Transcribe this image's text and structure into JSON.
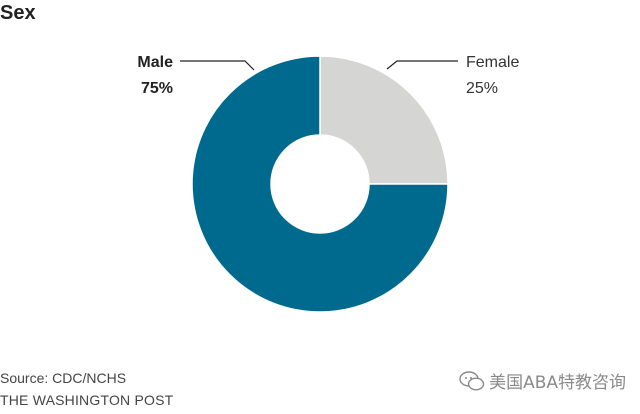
{
  "chart_data": {
    "type": "pie",
    "title": "Sex",
    "donut": true,
    "slices": [
      {
        "label": "Male",
        "value_label": "75%",
        "value": 75,
        "color": "#006a8e"
      },
      {
        "label": "Female",
        "value_label": "25%",
        "value": 25,
        "color": "#d5d5d3"
      }
    ]
  },
  "footer": {
    "source": "Source: CDC/NCHS",
    "brand": "THE WASHINGTON POST"
  },
  "watermark": {
    "text": "美国ABA特教咨询",
    "icon": "wechat-icon"
  }
}
